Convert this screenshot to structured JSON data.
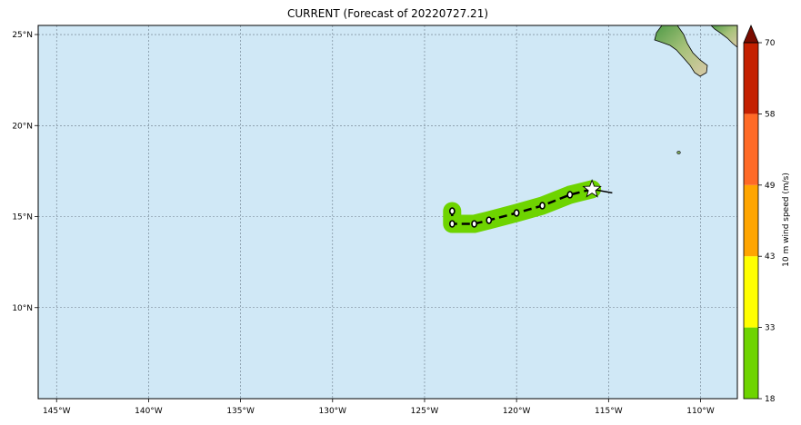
{
  "title": "CURRENT (Forecast of 20220727.21)",
  "map": {
    "background_color": "#d0e8f6",
    "lon_range": [
      -146,
      -108
    ],
    "lat_range": [
      5,
      25.5
    ],
    "lon_ticks": [
      {
        "value": -145,
        "label": "145°W"
      },
      {
        "value": -140,
        "label": "140°W"
      },
      {
        "value": -135,
        "label": "135°W"
      },
      {
        "value": -130,
        "label": "130°W"
      },
      {
        "value": -125,
        "label": "125°W"
      },
      {
        "value": -120,
        "label": "120°W"
      },
      {
        "value": -115,
        "label": "115°W"
      },
      {
        "value": -110,
        "label": "110°W"
      }
    ],
    "lat_ticks": [
      {
        "value": 25,
        "label": "25°N"
      },
      {
        "value": 20,
        "label": "20°N"
      },
      {
        "value": 15,
        "label": "15°N"
      },
      {
        "value": 10,
        "label": "10°N"
      }
    ]
  },
  "storm_track": {
    "swath_color": "#6ed400",
    "current_position": {
      "lon": -115.9,
      "lat": 16.5,
      "symbol": "star-icon"
    },
    "past_segment": [
      {
        "lon": -115.9,
        "lat": 16.5
      },
      {
        "lon": -114.8,
        "lat": 16.3
      }
    ],
    "forecast_points": [
      {
        "lon": -115.9,
        "lat": 16.5
      },
      {
        "lon": -117.1,
        "lat": 16.2
      },
      {
        "lon": -118.6,
        "lat": 15.6
      },
      {
        "lon": -120.0,
        "lat": 15.2
      },
      {
        "lon": -121.5,
        "lat": 14.8
      },
      {
        "lon": -122.3,
        "lat": 14.6
      },
      {
        "lon": -123.5,
        "lat": 14.6
      },
      {
        "lon": -123.5,
        "lat": 15.3
      }
    ]
  },
  "colorbar": {
    "label": "10 m wind speed (m/s)",
    "extend": "max",
    "ticks": [
      "18",
      "33",
      "43",
      "49",
      "58",
      "70"
    ],
    "bins": [
      {
        "from": 18,
        "to": 33,
        "color": "#6ed400"
      },
      {
        "from": 33,
        "to": 43,
        "color": "#ffff00"
      },
      {
        "from": 43,
        "to": 49,
        "color": "#ffa500"
      },
      {
        "from": 49,
        "to": 58,
        "color": "#ff6a26"
      },
      {
        "from": 58,
        "to": 70,
        "color": "#c42000"
      }
    ],
    "extend_color": "#7a0c00"
  }
}
